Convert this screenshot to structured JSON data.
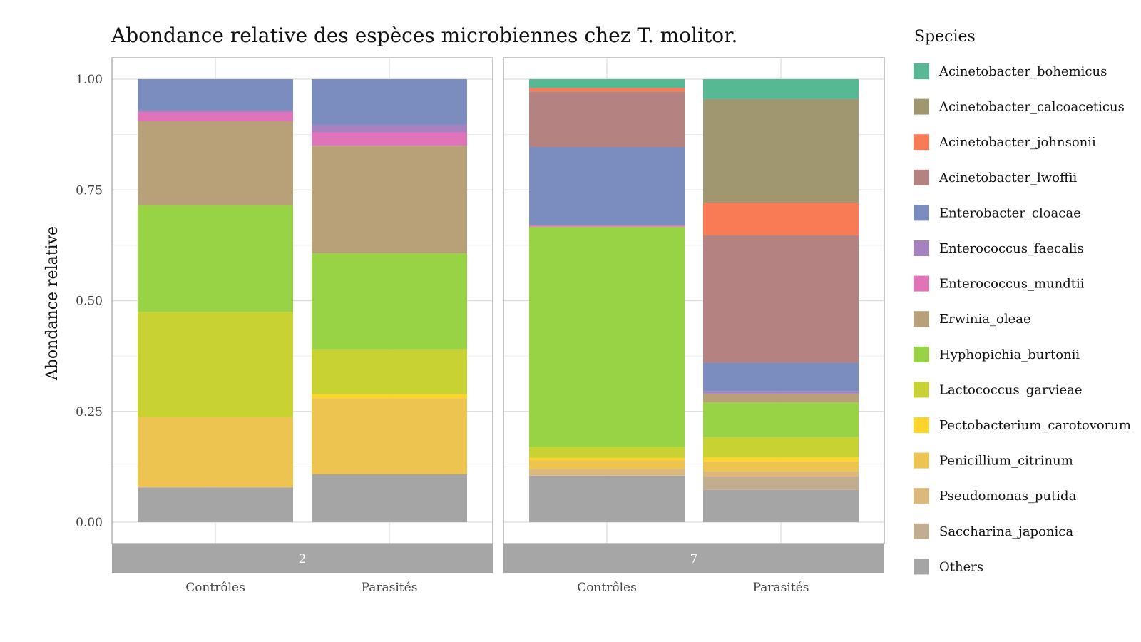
{
  "chart_data": {
    "type": "bar",
    "stacked": true,
    "title": "Abondance relative des espèces microbiennes chez T. molitor.",
    "ylabel": "Abondance relative",
    "xlabel": "",
    "ylim": [
      0,
      1
    ],
    "yticks": [
      "0.00",
      "0.25",
      "0.50",
      "0.75",
      "1.00"
    ],
    "grid": true,
    "legend_title": "Species",
    "legend_position": "right",
    "categories": [
      "Contrôles",
      "Parasités"
    ],
    "species": [
      {
        "name": "Acinetobacter_bohemicus",
        "color": "#57b994"
      },
      {
        "name": "Acinetobacter_calcoaceticus",
        "color": "#a09770"
      },
      {
        "name": "Acinetobacter_johnsonii",
        "color": "#f97b53"
      },
      {
        "name": "Acinetobacter_lwoffii",
        "color": "#b48280"
      },
      {
        "name": "Enterobacter_cloacae",
        "color": "#7b8dbf"
      },
      {
        "name": "Enterococcus_faecalis",
        "color": "#a882c0"
      },
      {
        "name": "Enterococcus_mundtii",
        "color": "#df74b8"
      },
      {
        "name": "Erwinia_oleae",
        "color": "#b8a178"
      },
      {
        "name": "Hyphopichia_burtonii",
        "color": "#98d345"
      },
      {
        "name": "Lactococcus_garvieae",
        "color": "#c8d333"
      },
      {
        "name": "Pectobacterium_carotovorum",
        "color": "#fdd42c"
      },
      {
        "name": "Penicillium_citrinum",
        "color": "#eec450"
      },
      {
        "name": "Pseudomonas_putida",
        "color": "#ddb87c"
      },
      {
        "name": "Saccharina_japonica",
        "color": "#c2ad90"
      },
      {
        "name": "Others",
        "color": "#a5a5a5"
      }
    ],
    "panels": [
      {
        "label": "2",
        "bars": [
          {
            "category": "Contrôles",
            "values": {
              "Others": 0.078,
              "Saccharina_japonica": 0.0,
              "Pseudomonas_putida": 0.002,
              "Penicillium_citrinum": 0.157,
              "Pectobacterium_carotovorum": 0.0,
              "Lactococcus_garvieae": 0.238,
              "Hyphopichia_burtonii": 0.24,
              "Erwinia_oleae": 0.19,
              "Enterococcus_mundtii": 0.02,
              "Enterococcus_faecalis": 0.005,
              "Enterobacter_cloacae": 0.07,
              "Acinetobacter_lwoffii": 0.0,
              "Acinetobacter_johnsonii": 0.0,
              "Acinetobacter_calcoaceticus": 0.0,
              "Acinetobacter_bohemicus": 0.0
            }
          },
          {
            "category": "Parasités",
            "values": {
              "Others": 0.108,
              "Saccharina_japonica": 0.0,
              "Pseudomonas_putida": 0.0,
              "Penicillium_citrinum": 0.172,
              "Pectobacterium_carotovorum": 0.009,
              "Lactococcus_garvieae": 0.101,
              "Hyphopichia_burtonii": 0.217,
              "Erwinia_oleae": 0.243,
              "Enterococcus_mundtii": 0.03,
              "Enterococcus_faecalis": 0.017,
              "Enterobacter_cloacae": 0.103,
              "Acinetobacter_lwoffii": 0.0,
              "Acinetobacter_johnsonii": 0.0,
              "Acinetobacter_calcoaceticus": 0.0,
              "Acinetobacter_bohemicus": 0.0
            }
          }
        ]
      },
      {
        "label": "7",
        "bars": [
          {
            "category": "Contrôles",
            "values": {
              "Others": 0.105,
              "Saccharina_japonica": 0.0,
              "Pseudomonas_putida": 0.015,
              "Penicillium_citrinum": 0.02,
              "Pectobacterium_carotovorum": 0.005,
              "Lactococcus_garvieae": 0.025,
              "Hyphopichia_burtonii": 0.497,
              "Erwinia_oleae": 0.0,
              "Enterococcus_mundtii": 0.003,
              "Enterococcus_faecalis": 0.0,
              "Enterobacter_cloacae": 0.177,
              "Acinetobacter_lwoffii": 0.125,
              "Acinetobacter_johnsonii": 0.008,
              "Acinetobacter_calcoaceticus": 0.0,
              "Acinetobacter_bohemicus": 0.02
            }
          },
          {
            "category": "Parasités",
            "values": {
              "Others": 0.073,
              "Saccharina_japonica": 0.03,
              "Pseudomonas_putida": 0.012,
              "Penicillium_citrinum": 0.022,
              "Pectobacterium_carotovorum": 0.01,
              "Lactococcus_garvieae": 0.045,
              "Hyphopichia_burtonii": 0.078,
              "Erwinia_oleae": 0.02,
              "Enterococcus_mundtii": 0.0,
              "Enterococcus_faecalis": 0.005,
              "Enterobacter_cloacae": 0.065,
              "Acinetobacter_lwoffii": 0.288,
              "Acinetobacter_johnsonii": 0.073,
              "Acinetobacter_calcoaceticus": 0.234,
              "Acinetobacter_bohemicus": 0.045
            }
          }
        ]
      }
    ]
  }
}
